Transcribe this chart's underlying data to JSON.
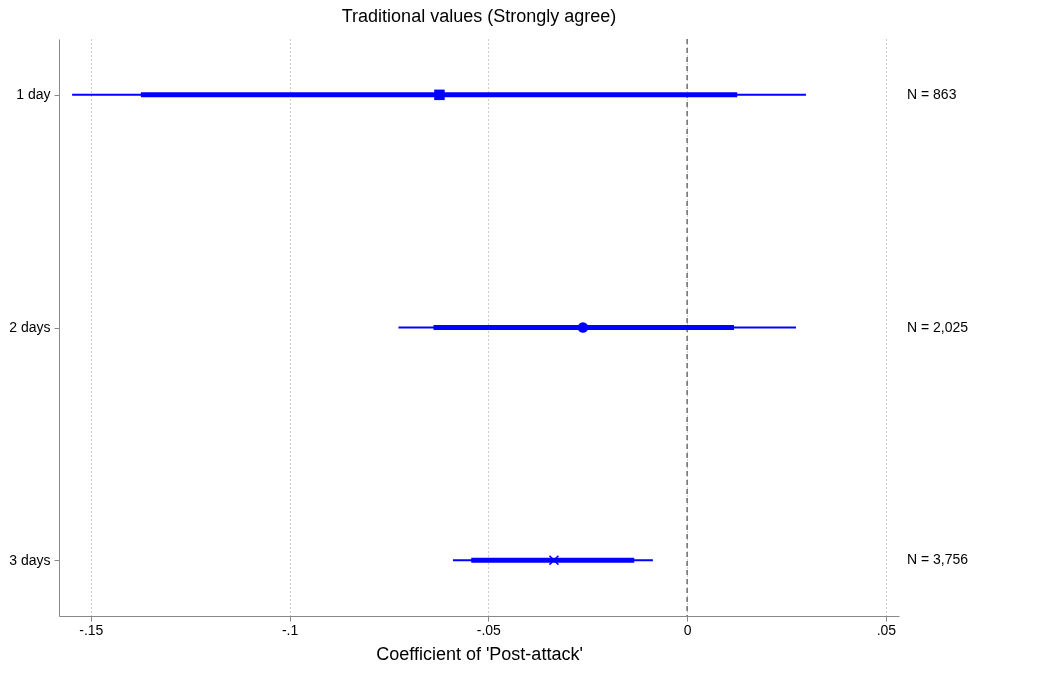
{
  "chart_data": {
    "type": "scatter",
    "orientation": "horizontal",
    "title": "Traditional values (Strongly agree)",
    "xlabel": "Coefficient of 'Post-attack'",
    "categories": [
      "1 day",
      "2 days",
      "3 days"
    ],
    "xlim": [
      -0.158,
      0.0533
    ],
    "xticks": [
      {
        "value": -0.15,
        "label": "-.15"
      },
      {
        "value": -0.1,
        "label": "-.1"
      },
      {
        "value": -0.05,
        "label": "-.05"
      },
      {
        "value": 0,
        "label": "0"
      },
      {
        "value": 0.05,
        "label": ".05"
      }
    ],
    "grid": "x",
    "ref_lines": [
      {
        "axis": "x",
        "value": 0,
        "color": "#6e6e6e",
        "line_style": "dashed"
      }
    ],
    "series": [
      {
        "type": "bar",
        "color": "#0000ff",
        "base": [
          -0.1374,
          -0.0638,
          -0.0543
        ],
        "values": [
          0.15,
          0.0756,
          0.041
        ]
      },
      {
        "color": "#0000ff",
        "marker": "square",
        "values": [
          -0.0623,
          null,
          null
        ],
        "errors": [
          [
            -0.1547,
            0.0299
          ],
          null,
          null
        ]
      },
      {
        "color": "#0000ff",
        "marker": "circle",
        "values": [
          null,
          -0.0262,
          null
        ],
        "errors": [
          null,
          [
            -0.0726,
            0.0274
          ],
          null
        ]
      },
      {
        "color": "#0000ff",
        "marker": "cross",
        "values": [
          null,
          null,
          -0.0335
        ],
        "errors": [
          null,
          null,
          [
            -0.0589,
            -0.0086
          ]
        ]
      }
    ],
    "annotations": [
      "N = 863",
      "N = 2,025",
      "N = 3,756"
    ]
  }
}
